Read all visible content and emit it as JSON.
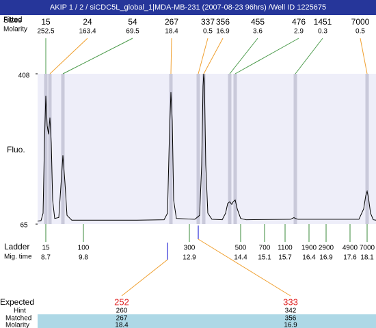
{
  "header": {
    "title": "AKIP 1 / 2 / siCDC5L_global_1|MDA-MB-231 (2007-08-23 96hrs) /Well ID 1225675"
  },
  "peaks": {
    "fitted_label": "Fitted",
    "sizes_label": "Sizes",
    "molarity_label": "Molarity",
    "sizes": [
      15,
      24,
      54,
      267,
      337,
      356,
      455,
      476,
      1451,
      7000
    ],
    "molarity": [
      252.5,
      163.4,
      69.5,
      18.4,
      0.5,
      16.9,
      3.6,
      2.9,
      0.3,
      0.5
    ]
  },
  "chart_data": {
    "type": "line",
    "ylabel": "Fluo.",
    "ylim": [
      65,
      408
    ],
    "yticks": [
      65,
      408
    ],
    "xlim": [
      8.46,
      18.36
    ],
    "x": [
      8.46,
      8.56,
      8.62,
      8.66,
      8.7,
      8.74,
      8.78,
      8.82,
      8.86,
      8.9,
      8.96,
      9.08,
      9.14,
      9.2,
      9.26,
      9.32,
      9.46,
      11.36,
      12.16,
      12.26,
      12.32,
      12.36,
      12.4,
      12.44,
      12.52,
      13.06,
      13.2,
      13.26,
      13.3,
      13.32,
      13.34,
      13.38,
      13.44,
      13.56,
      13.86,
      13.96,
      14.02,
      14.08,
      14.14,
      14.18,
      14.24,
      14.3,
      14.4,
      14.56,
      15.86,
      15.96,
      16.0,
      16.08,
      17.86,
      18.0,
      18.06,
      18.1,
      18.14,
      18.2,
      18.28,
      18.36
    ],
    "series": [
      {
        "color": "#000000",
        "values": [
          72,
          73,
          90,
          250,
          358,
          290,
          270,
          308,
          250,
          120,
          78,
          80,
          150,
          222,
          160,
          85,
          74,
          74,
          75,
          90,
          280,
          366,
          300,
          120,
          78,
          76,
          85,
          200,
          380,
          408,
          390,
          200,
          90,
          76,
          75,
          90,
          112,
          116,
          110,
          116,
          120,
          100,
          78,
          75,
          76,
          80,
          78,
          76,
          76,
          100,
          130,
          140,
          125,
          90,
          75,
          74
        ]
      }
    ]
  },
  "ladder": {
    "label": "Ladder",
    "time_label": "Mig. time",
    "sizes": [
      15,
      100,
      300,
      500,
      700,
      1100,
      1900,
      2900,
      4900,
      7000
    ],
    "mig_times": [
      8.7,
      9.8,
      12.9,
      14.4,
      15.1,
      15.7,
      16.4,
      16.9,
      17.6,
      18.1
    ]
  },
  "expected": {
    "expected_label": "Expected",
    "hint_label": "Hint",
    "matched_label": "Matched",
    "molarity_label": "Molarity",
    "columns": [
      {
        "expected": 252,
        "hint": 260,
        "matched": 267,
        "molarity": 18.4
      },
      {
        "expected": 333,
        "hint": 342,
        "matched": 356,
        "molarity": 16.9
      }
    ]
  }
}
